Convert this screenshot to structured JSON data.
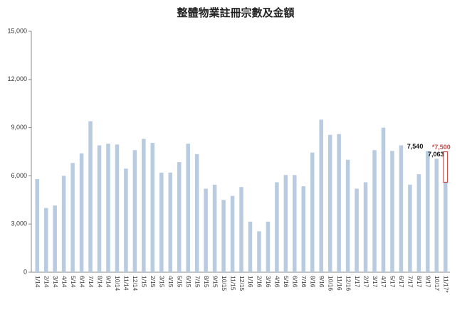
{
  "chart_data": {
    "type": "bar",
    "title": "整體物業註冊宗數及金額",
    "categories": [
      "1/14",
      "2/14",
      "3/14",
      "4/14",
      "5/14",
      "6/14",
      "7/14",
      "8/14",
      "9/14",
      "10/14",
      "11/14",
      "12/14",
      "1/15",
      "2/15",
      "3/15",
      "4/15",
      "5/15",
      "6/15",
      "7/15",
      "8/15",
      "9/15",
      "10/15",
      "11/15",
      "12/15",
      "1/16",
      "2/16",
      "3/16",
      "4/16",
      "5/16",
      "6/16",
      "7/16",
      "8/16",
      "9/16",
      "10/16",
      "11/16",
      "12/16",
      "1/17",
      "2/17",
      "3/17",
      "4/17",
      "5/17",
      "6/17",
      "7/17",
      "8/17",
      "9/17",
      "10/17",
      "11/17*"
    ],
    "values": [
      5800,
      4000,
      4150,
      6000,
      6800,
      7400,
      9400,
      7900,
      8000,
      7950,
      6450,
      7600,
      8300,
      8050,
      6200,
      6200,
      6850,
      8000,
      7350,
      5200,
      5450,
      4500,
      4750,
      5300,
      3150,
      2550,
      3150,
      5600,
      6050,
      6050,
      5350,
      7450,
      9500,
      8550,
      8600,
      7000,
      5200,
      5600,
      7600,
      9000,
      7550,
      7900,
      5450,
      6100,
      7540,
      7063,
      5600
    ],
    "value_labels": [
      null,
      null,
      null,
      null,
      null,
      null,
      null,
      null,
      null,
      null,
      null,
      null,
      null,
      null,
      null,
      null,
      null,
      null,
      null,
      null,
      null,
      null,
      null,
      null,
      null,
      null,
      null,
      null,
      null,
      null,
      null,
      null,
      null,
      null,
      null,
      null,
      null,
      null,
      null,
      null,
      null,
      null,
      null,
      null,
      "7,540",
      "7,063",
      null
    ],
    "estimate_values": [
      null,
      null,
      null,
      null,
      null,
      null,
      null,
      null,
      null,
      null,
      null,
      null,
      null,
      null,
      null,
      null,
      null,
      null,
      null,
      null,
      null,
      null,
      null,
      null,
      null,
      null,
      null,
      null,
      null,
      null,
      null,
      null,
      null,
      null,
      null,
      null,
      null,
      null,
      null,
      null,
      null,
      null,
      null,
      null,
      null,
      null,
      7500
    ],
    "estimate_value_labels": [
      null,
      null,
      null,
      null,
      null,
      null,
      null,
      null,
      null,
      null,
      null,
      null,
      null,
      null,
      null,
      null,
      null,
      null,
      null,
      null,
      null,
      null,
      null,
      null,
      null,
      null,
      null,
      null,
      null,
      null,
      null,
      null,
      null,
      null,
      null,
      null,
      null,
      null,
      null,
      null,
      null,
      null,
      null,
      null,
      null,
      null,
      "*7,500"
    ],
    "color": "#b8cbe0",
    "estimate_color": "#c0504d",
    "ylim": [
      0,
      15000
    ],
    "yticks": [
      0,
      {
        "value": 3000,
        "label": "3,000"
      },
      {
        "value": 6000,
        "label": "6,000"
      },
      {
        "value": 9000,
        "label": "9,000"
      },
      {
        "value": 12000,
        "label": "12,000"
      },
      {
        "value": 15000,
        "label": "15,000"
      }
    ],
    "grid": false
  }
}
